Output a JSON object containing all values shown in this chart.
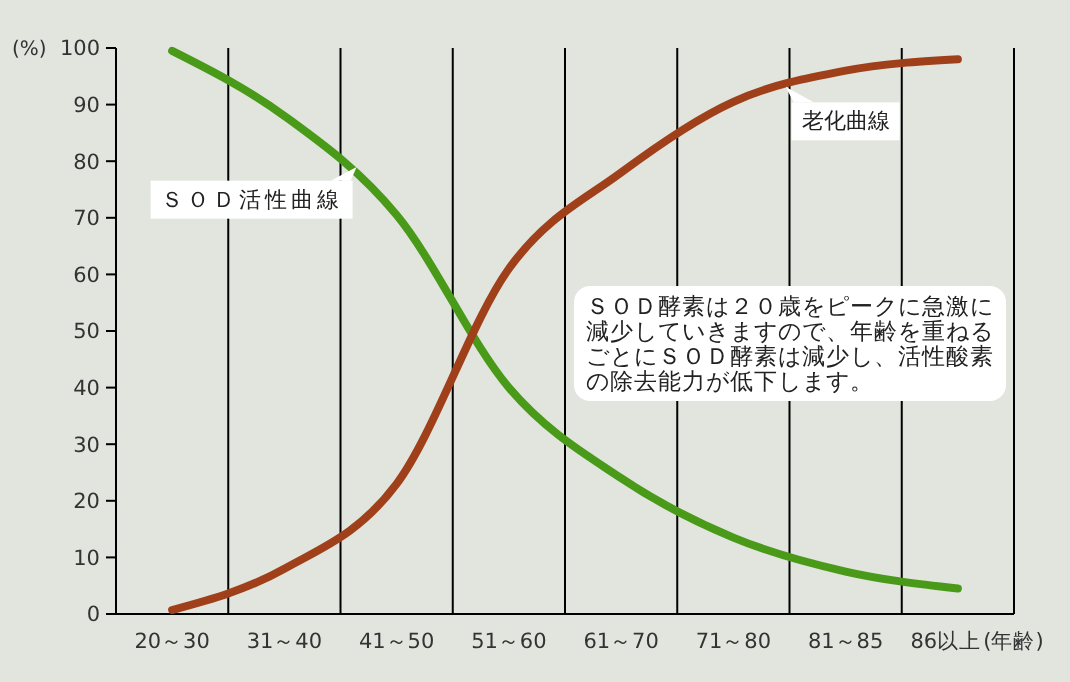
{
  "chart_data": {
    "type": "line",
    "ylabel": "(%)",
    "xlabel": "(年齢)",
    "categories": [
      "20～30",
      "31～40",
      "41～50",
      "51～60",
      "61～70",
      "71～80",
      "81～85",
      "86以上"
    ],
    "ylim": [
      0,
      100
    ],
    "yticks": [
      0,
      10,
      20,
      30,
      40,
      50,
      60,
      70,
      80,
      90,
      100
    ],
    "grid": "x",
    "legend": false,
    "marker": "none",
    "line_style": "solid",
    "series": [
      {
        "name": "ＳＯＤ活性曲線",
        "color": "#4a9a1a",
        "values": [
          99.5,
          88,
          70.5,
          40,
          24,
          13.5,
          7.5,
          4.5
        ]
      },
      {
        "name": "老化曲線",
        "color": "#a0401a",
        "values": [
          0.7,
          8,
          23,
          61,
          78,
          90.5,
          96,
          98
        ]
      }
    ],
    "annotations": [
      "ＳＯＤ酵素は２０歳をピークに急激に減少していきますので、年齢を重ねるごとにＳＯＤ酵素は減少し、活性酸素の除去能力が低下します。"
    ]
  }
}
